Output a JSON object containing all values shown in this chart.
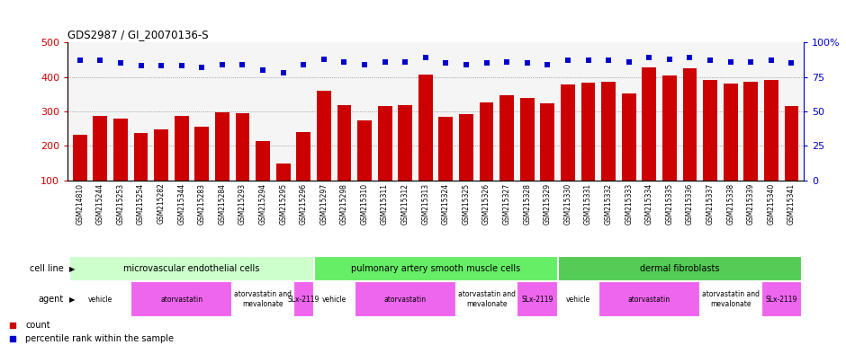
{
  "title": "GDS2987 / GI_20070136-S",
  "categories": [
    "GSM214810",
    "GSM215244",
    "GSM215253",
    "GSM215254",
    "GSM215282",
    "GSM215344",
    "GSM215283",
    "GSM215284",
    "GSM215293",
    "GSM215294",
    "GSM215295",
    "GSM215296",
    "GSM215297",
    "GSM215298",
    "GSM215310",
    "GSM215311",
    "GSM215312",
    "GSM215313",
    "GSM215324",
    "GSM215325",
    "GSM215326",
    "GSM215327",
    "GSM215328",
    "GSM215329",
    "GSM215330",
    "GSM215331",
    "GSM215332",
    "GSM215333",
    "GSM215334",
    "GSM215335",
    "GSM215336",
    "GSM215337",
    "GSM215338",
    "GSM215339",
    "GSM215340",
    "GSM215341"
  ],
  "bar_values": [
    233,
    288,
    280,
    238,
    248,
    287,
    255,
    298,
    295,
    215,
    150,
    240,
    360,
    318,
    273,
    315,
    318,
    407,
    285,
    293,
    327,
    347,
    340,
    323,
    378,
    383,
    387,
    353,
    428,
    403,
    425,
    392,
    382,
    385,
    390,
    315
  ],
  "dot_values": [
    87,
    87,
    85,
    83,
    83,
    83,
    82,
    84,
    84,
    80,
    78,
    84,
    88,
    86,
    84,
    86,
    86,
    89,
    85,
    84,
    85,
    86,
    85,
    84,
    87,
    87,
    87,
    86,
    89,
    88,
    89,
    87,
    86,
    86,
    87,
    85
  ],
  "bar_color": "#cc0000",
  "dot_color": "#0000cc",
  "ylim_left": [
    100,
    500
  ],
  "ylim_right": [
    0,
    100
  ],
  "yticks_left": [
    100,
    200,
    300,
    400,
    500
  ],
  "yticks_right": [
    0,
    25,
    50,
    75,
    100
  ],
  "cell_line_groups": [
    {
      "label": "microvascular endothelial cells",
      "start": 0,
      "end": 11,
      "color": "#ccffcc"
    },
    {
      "label": "pulmonary artery smooth muscle cells",
      "start": 12,
      "end": 23,
      "color": "#66ee66"
    },
    {
      "label": "dermal fibroblasts",
      "start": 24,
      "end": 35,
      "color": "#55cc55"
    }
  ],
  "agent_groups": [
    {
      "label": "vehicle",
      "start": 0,
      "end": 2,
      "color": "#ffffff"
    },
    {
      "label": "atorvastatin",
      "start": 3,
      "end": 7,
      "color": "#ee66ee"
    },
    {
      "label": "atorvastatin and\nmevalonate",
      "start": 8,
      "end": 10,
      "color": "#ffffff"
    },
    {
      "label": "SLx-2119",
      "start": 11,
      "end": 11,
      "color": "#ee66ee"
    },
    {
      "label": "vehicle",
      "start": 12,
      "end": 13,
      "color": "#ffffff"
    },
    {
      "label": "atorvastatin",
      "start": 14,
      "end": 18,
      "color": "#ee66ee"
    },
    {
      "label": "atorvastatin and\nmevalonate",
      "start": 19,
      "end": 21,
      "color": "#ffffff"
    },
    {
      "label": "SLx-2119",
      "start": 22,
      "end": 23,
      "color": "#ee66ee"
    },
    {
      "label": "vehicle",
      "start": 24,
      "end": 25,
      "color": "#ffffff"
    },
    {
      "label": "atorvastatin",
      "start": 26,
      "end": 30,
      "color": "#ee66ee"
    },
    {
      "label": "atorvastatin and\nmevalonate",
      "start": 31,
      "end": 33,
      "color": "#ffffff"
    },
    {
      "label": "SLx-2119",
      "start": 34,
      "end": 35,
      "color": "#ee66ee"
    }
  ],
  "grid_color": "#888888",
  "xtick_bg": "#dddddd",
  "row_label_cell_line": "cell line",
  "row_label_agent": "agent"
}
